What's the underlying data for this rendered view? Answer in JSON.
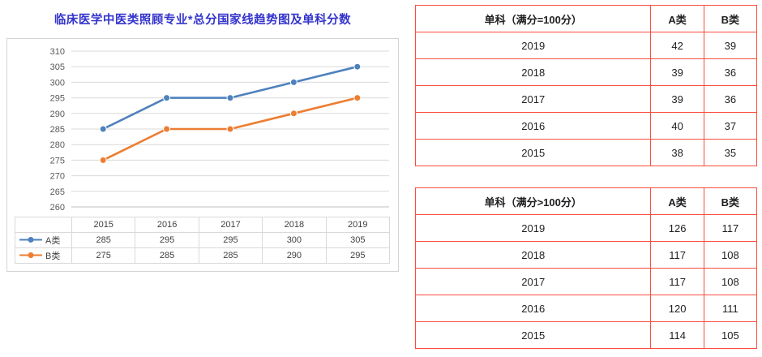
{
  "chart_data": {
    "type": "line",
    "title": "临床医学中医类照顾专业*总分国家线趋势图及单科分数",
    "categories": [
      "2015",
      "2016",
      "2017",
      "2018",
      "2019"
    ],
    "series": [
      {
        "name": "A类",
        "values": [
          285,
          295,
          295,
          300,
          305
        ],
        "color": "#4E81BD"
      },
      {
        "name": "B类",
        "values": [
          275,
          285,
          285,
          290,
          295
        ],
        "color": "#ED7D31"
      }
    ],
    "xlabel": "",
    "ylabel": "",
    "ylim": [
      260,
      310
    ],
    "ytick_step": 5,
    "grid": true,
    "legend_position": "table-left",
    "grid_color": "#d9d9d9",
    "axis_text_color": "#595959",
    "title_color": "#3333cc"
  },
  "tables": [
    {
      "header": [
        "单科（满分=100分）",
        "A类",
        "B类"
      ],
      "rows": [
        [
          "2019",
          "42",
          "39"
        ],
        [
          "2018",
          "39",
          "36"
        ],
        [
          "2017",
          "39",
          "36"
        ],
        [
          "2016",
          "40",
          "37"
        ],
        [
          "2015",
          "38",
          "35"
        ]
      ],
      "border_color": "#fb4d3d"
    },
    {
      "header": [
        "单科（满分>100分）",
        "A类",
        "B类"
      ],
      "rows": [
        [
          "2019",
          "126",
          "117"
        ],
        [
          "2018",
          "117",
          "108"
        ],
        [
          "2017",
          "117",
          "108"
        ],
        [
          "2016",
          "120",
          "111"
        ],
        [
          "2015",
          "114",
          "105"
        ]
      ],
      "border_color": "#fb4d3d"
    }
  ]
}
